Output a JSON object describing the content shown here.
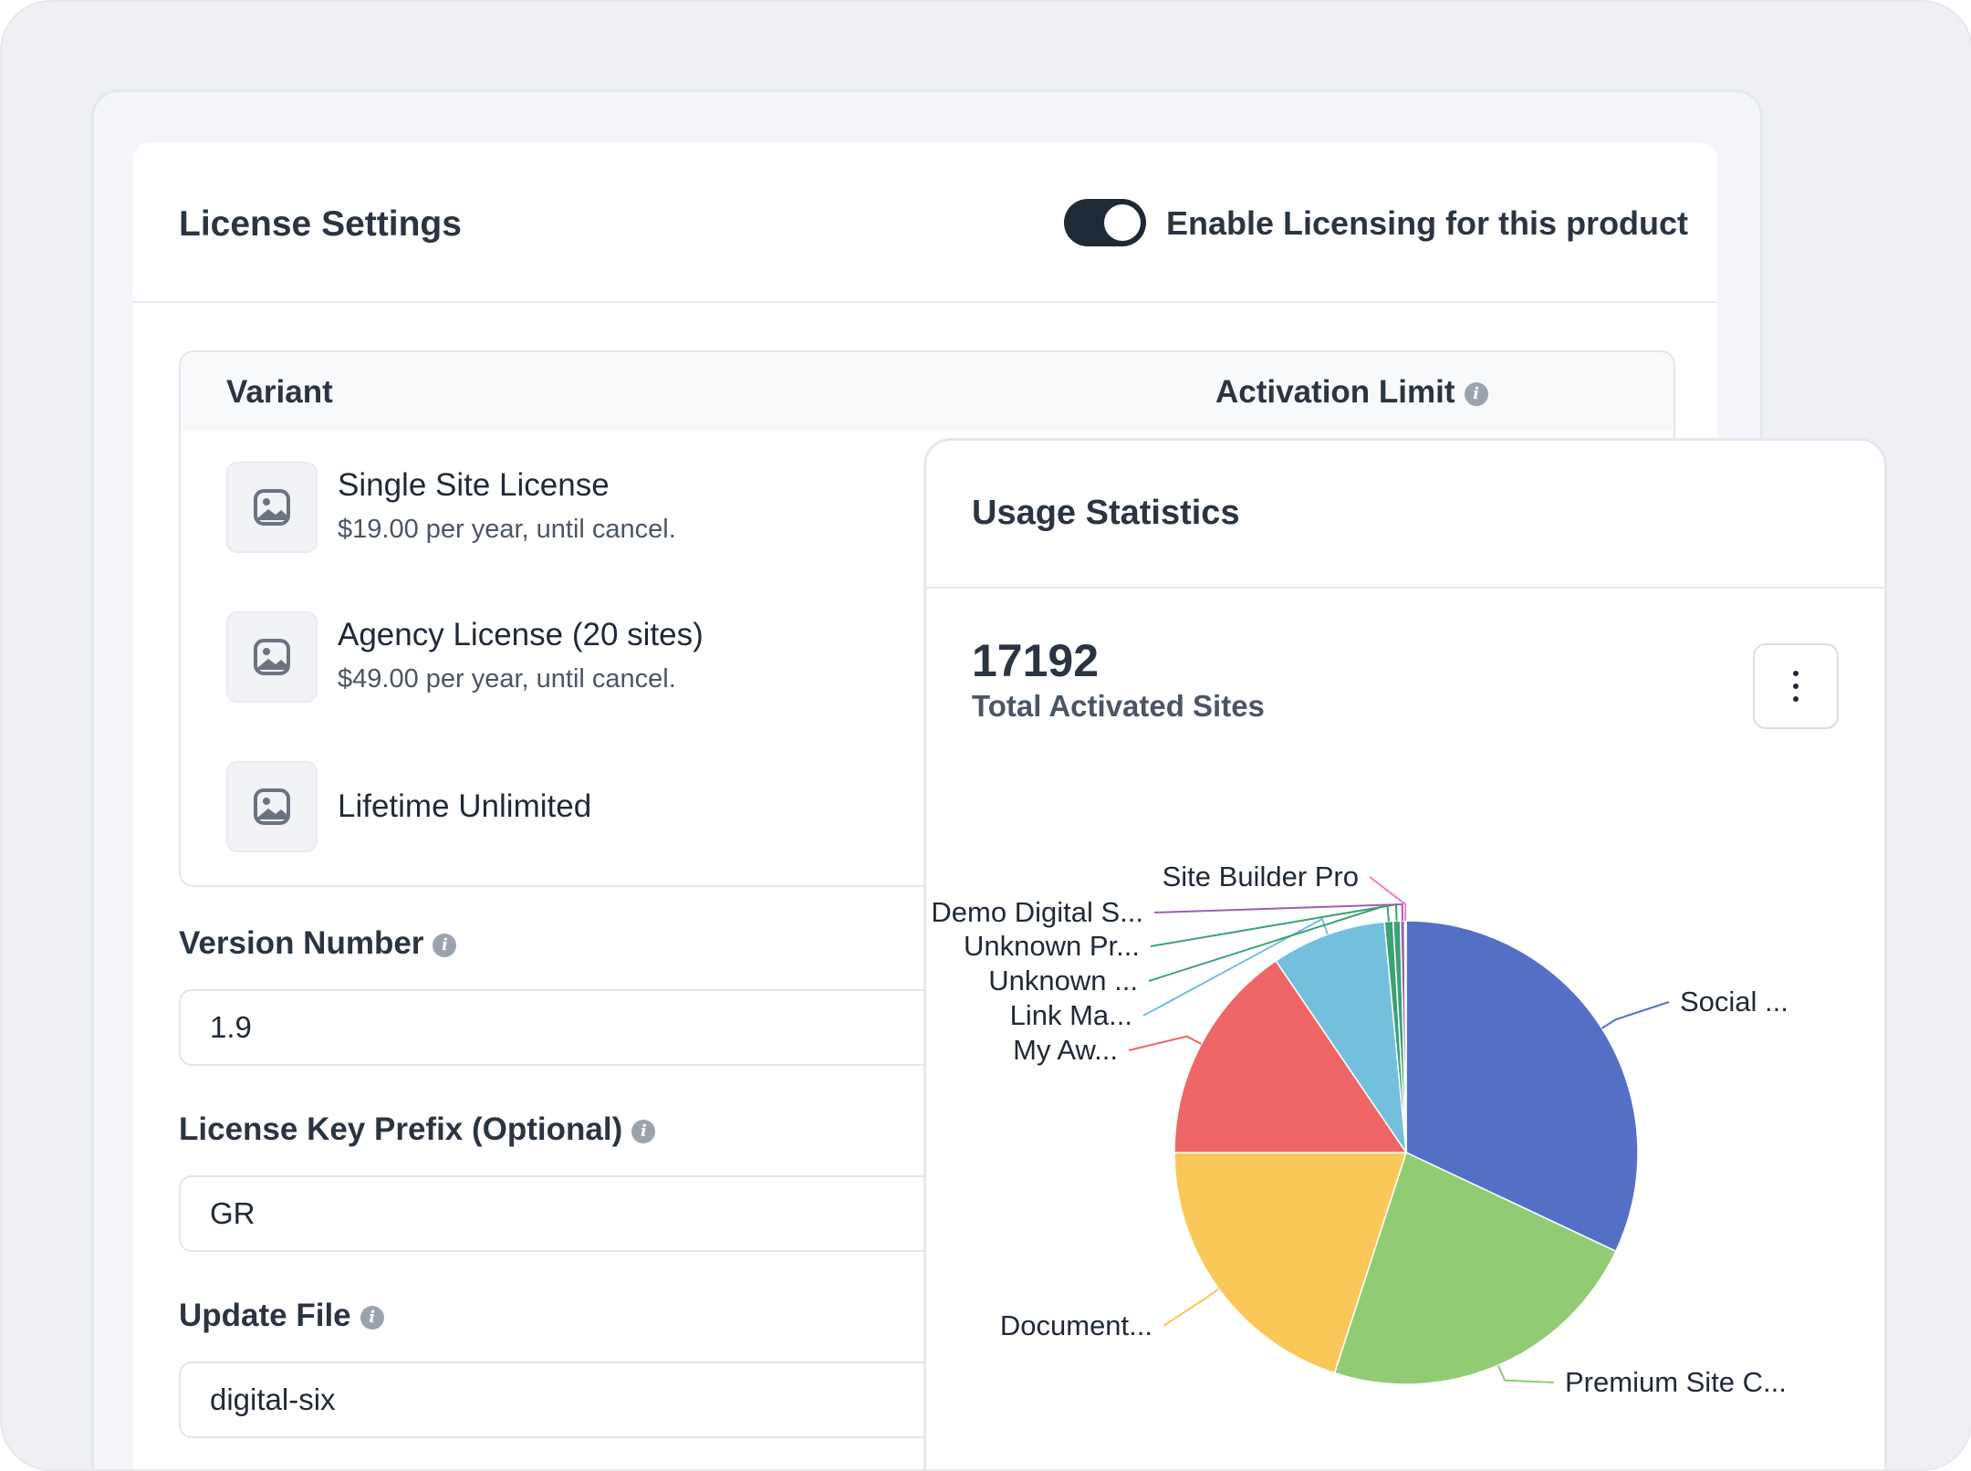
{
  "license": {
    "title": "License Settings",
    "toggle_label": "Enable Licensing for this product",
    "toggle_on": true,
    "table": {
      "col_variant": "Variant",
      "col_activation": "Activation Limit",
      "rows": [
        {
          "name": "Single Site License",
          "price": "$19.00 per year, until cancel."
        },
        {
          "name": "Agency License (20 sites)",
          "price": "$49.00 per year, until cancel."
        },
        {
          "name": "Lifetime Unlimited",
          "price": ""
        }
      ]
    },
    "version": {
      "label": "Version Number",
      "value": "1.9"
    },
    "prefix": {
      "label": "License Key Prefix (Optional)",
      "value": "GR"
    },
    "update_file": {
      "label": "Update File",
      "value": "digital-six"
    },
    "info_glyph": "i"
  },
  "stats": {
    "title": "Usage Statistics",
    "total_value": "17192",
    "total_label": "Total Activated Sites",
    "menu_icon": "kebab-menu-icon"
  },
  "chart_data": {
    "type": "pie",
    "labels": [
      "Social ...",
      "Premium Site C...",
      "Document...",
      "My Aw...",
      "Link Ma...",
      "Unknown ...",
      "Unknown Pr...",
      "Demo Digital S...",
      "Site Builder Pro"
    ],
    "values": [
      32.0,
      23.0,
      20.0,
      15.5,
      8.0,
      0.6,
      0.5,
      0.3,
      0.1
    ],
    "colors": [
      "#5470c6",
      "#91cc75",
      "#fac858",
      "#ee6666",
      "#73c0de",
      "#3ba272",
      "#3ba272",
      "#9a60b4",
      "#ea7ccc"
    ]
  }
}
